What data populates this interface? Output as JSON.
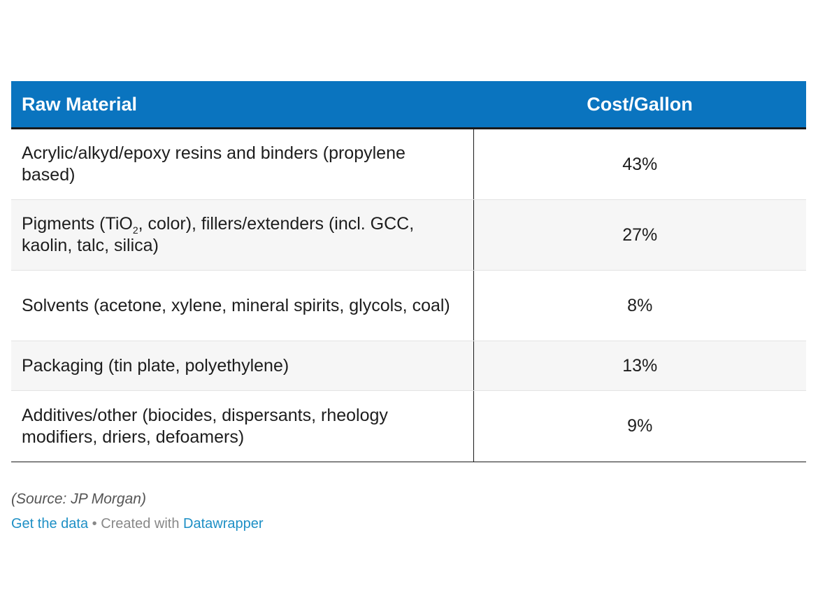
{
  "chart_data": {
    "type": "table",
    "columns": [
      "Raw Material",
      "Cost/Gallon"
    ],
    "rows": [
      {
        "material": "Acrylic/alkyd/epoxy resins and binders (propylene based)",
        "cost": "43%",
        "value": 43
      },
      {
        "material_parts": {
          "before": "Pigments (TiO",
          "sub": "2",
          "after": ", color), fillers/extenders (incl. GCC, kaolin, talc, silica)"
        },
        "cost": "27%",
        "value": 27
      },
      {
        "material": "Solvents (acetone, xylene, mineral spirits, glycols, coal)",
        "cost": "8%",
        "value": 8
      },
      {
        "material": "Packaging (tin plate, polyethylene)",
        "cost": "13%",
        "value": 13
      },
      {
        "material": "Additives/other (biocides, dispersants, rheology modifiers, driers, defoamers)",
        "cost": "9%",
        "value": 9
      }
    ]
  },
  "footer": {
    "source": "(Source: JP Morgan)",
    "get_data_link": "Get the data",
    "separator": " • Created with ",
    "datawrapper_link": "Datawrapper"
  },
  "colors": {
    "header_bg": "#0a74bf",
    "link": "#1d8fc5",
    "alt_row": "#f6f6f6"
  }
}
